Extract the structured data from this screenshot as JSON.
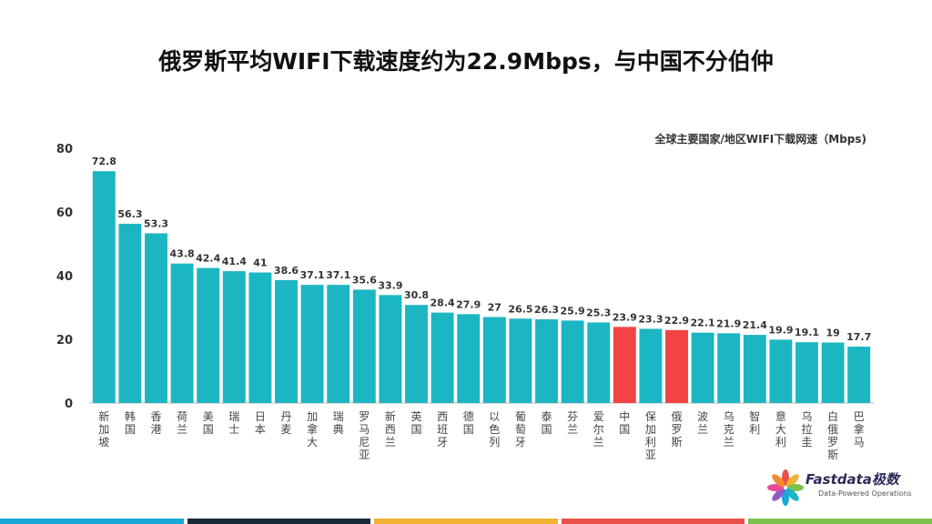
{
  "title": "俄罗斯平均WIFI下载速度约为22.9Mbps，与中国不分伯仲",
  "subtitle": "全球主要国家/地区WIFI下载网速（Mbps)",
  "logo": {
    "name": "Fastdata极数",
    "tagline": "Data-Powered Operations"
  },
  "colors": {
    "bar": "#1bb6c2",
    "highlight": "#f24444",
    "footer": [
      "#1aa9d6",
      "#1a2a3a",
      "#f2b233",
      "#e8514a",
      "#7cc24a"
    ]
  },
  "chart_data": {
    "type": "bar",
    "title": "俄罗斯平均WIFI下载速度约为22.9Mbps，与中国不分伯仲",
    "subtitle": "全球主要国家/地区WIFI下载网速（Mbps)",
    "ylim": [
      0,
      80
    ],
    "yticks": [
      "0",
      "20",
      "40",
      "60",
      "80"
    ],
    "grid": false,
    "categories": [
      "新加坡",
      "韩国",
      "香港",
      "荷兰",
      "美国",
      "瑞士",
      "日本",
      "丹麦",
      "加拿大",
      "瑞典",
      "罗马尼亚",
      "新西兰",
      "英国",
      "西班牙",
      "德国",
      "以色列",
      "葡萄牙",
      "泰国",
      "芬兰",
      "爱尔兰",
      "中国",
      "保加利亚",
      "俄罗斯",
      "波兰",
      "乌克兰",
      "智利",
      "意大利",
      "乌拉圭",
      "白俄罗斯",
      "巴拿马"
    ],
    "values": [
      72.8,
      56.3,
      53.3,
      43.8,
      42.4,
      41.4,
      41,
      38.6,
      37.1,
      37.1,
      35.6,
      33.9,
      30.8,
      28.4,
      27.9,
      27,
      26.5,
      26.3,
      25.9,
      25.3,
      23.9,
      23.3,
      22.9,
      22.1,
      21.9,
      21.4,
      19.9,
      19.1,
      19,
      17.7
    ],
    "value_labels": [
      "72.8",
      "56.3",
      "53.3",
      "43.8",
      "42.4",
      "41.4",
      "41",
      "38.6",
      "37.1",
      "37.1",
      "35.6",
      "33.9",
      "30.8",
      "28.4",
      "27.9",
      "27",
      "26.5",
      "26.3",
      "25.9",
      "25.3",
      "23.9",
      "23.3",
      "22.9",
      "22.1",
      "21.9",
      "21.4",
      "19.9",
      "19.1",
      "19",
      "17.7"
    ],
    "highlighted": [
      "中国",
      "俄罗斯"
    ]
  }
}
